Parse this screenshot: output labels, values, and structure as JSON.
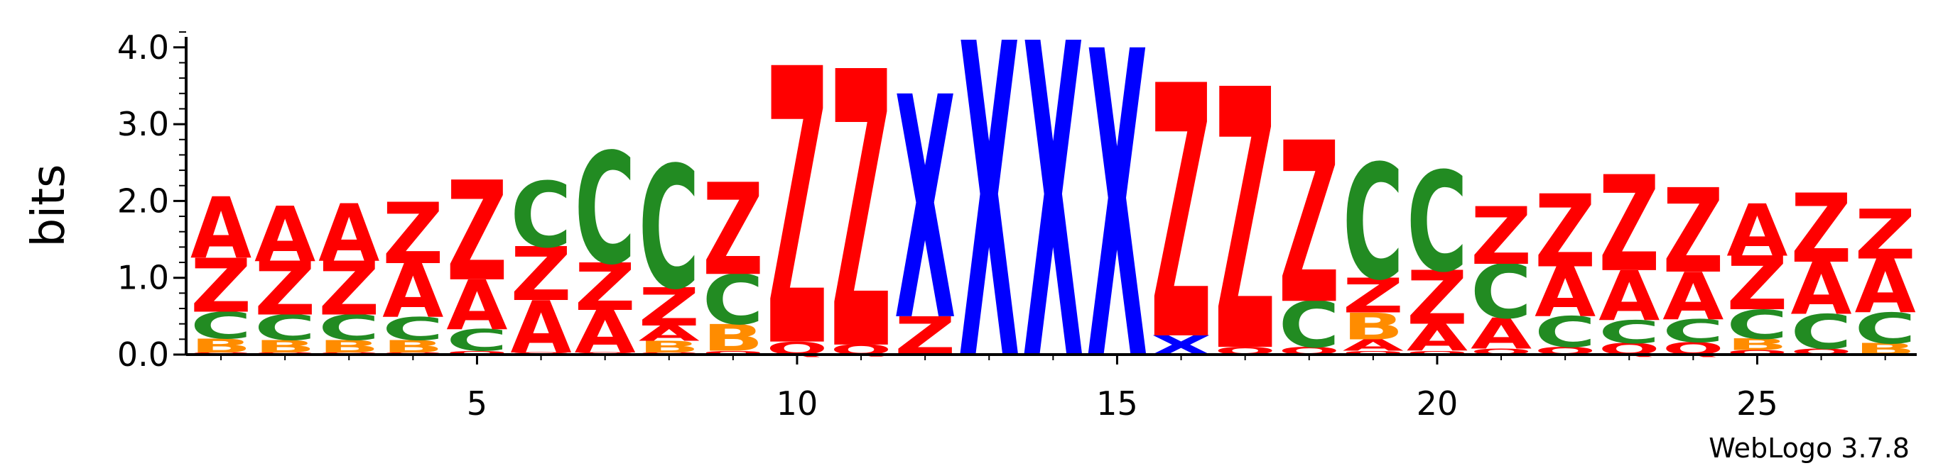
{
  "chart_data": {
    "type": "sequence-logo",
    "ylabel": "bits",
    "ylim": [
      0,
      4.2
    ],
    "yticks": [
      "0.0",
      "1.0",
      "2.0",
      "3.0",
      "4.0"
    ],
    "xticks": [
      5,
      10,
      15,
      20,
      25
    ],
    "positions": [
      1,
      27
    ],
    "colors": {
      "A": "#ff0000",
      "Z": "#ff0000",
      "C": "#228b22",
      "B": "#ff8c00",
      "X": "#0000ff",
      "Q": "#ff0000"
    },
    "columns": [
      [
        [
          "Q",
          0.03
        ],
        [
          "B",
          0.18
        ],
        [
          "C",
          0.35
        ],
        [
          "Z",
          0.7
        ],
        [
          "A",
          0.8
        ]
      ],
      [
        [
          "Q",
          0.03
        ],
        [
          "B",
          0.16
        ],
        [
          "C",
          0.33
        ],
        [
          "Z",
          0.7
        ],
        [
          "A",
          0.72
        ]
      ],
      [
        [
          "Q",
          0.03
        ],
        [
          "B",
          0.16
        ],
        [
          "C",
          0.33
        ],
        [
          "Z",
          0.7
        ],
        [
          "A",
          0.75
        ]
      ],
      [
        [
          "Q",
          0.03
        ],
        [
          "B",
          0.16
        ],
        [
          "C",
          0.3
        ],
        [
          "A",
          0.7
        ],
        [
          "Z",
          0.8
        ]
      ],
      [
        [
          "Q",
          0.05
        ],
        [
          "C",
          0.28
        ],
        [
          "A",
          0.65
        ],
        [
          "Z",
          1.3
        ]
      ],
      [
        [
          "Q",
          0.03
        ],
        [
          "A",
          0.68
        ],
        [
          "Z",
          0.7
        ],
        [
          "C",
          0.85
        ]
      ],
      [
        [
          "Q",
          0.03
        ],
        [
          "A",
          0.55
        ],
        [
          "Z",
          0.62
        ],
        [
          "C",
          1.45
        ]
      ],
      [
        [
          "Q",
          0.03
        ],
        [
          "B",
          0.15
        ],
        [
          "A",
          0.2
        ],
        [
          "Z",
          0.5
        ],
        [
          "C",
          1.6
        ]
      ],
      [
        [
          "Q",
          0.05
        ],
        [
          "B",
          0.35
        ],
        [
          "C",
          0.65
        ],
        [
          "Z",
          1.2
        ]
      ],
      [
        [
          "Q",
          0.17
        ],
        [
          "Z",
          3.6
        ]
      ],
      [
        [
          "Q",
          0.13
        ],
        [
          "Z",
          3.6
        ]
      ],
      [
        [
          "Z",
          0.5
        ],
        [
          "X",
          2.9
        ]
      ],
      [
        [
          "X",
          4.1
        ]
      ],
      [
        [
          "X",
          4.1
        ]
      ],
      [
        [
          "X",
          4.0
        ]
      ],
      [
        [
          "X",
          0.25
        ],
        [
          "Z",
          3.3
        ]
      ],
      [
        [
          "Q",
          0.1
        ],
        [
          "Z",
          3.4
        ]
      ],
      [
        [
          "Q",
          0.1
        ],
        [
          "C",
          0.6
        ],
        [
          "Z",
          2.1
        ]
      ],
      [
        [
          "Q",
          0.05
        ],
        [
          "A",
          0.15
        ],
        [
          "B",
          0.35
        ],
        [
          "Z",
          0.45
        ],
        [
          "C",
          1.5
        ]
      ],
      [
        [
          "Q",
          0.05
        ],
        [
          "A",
          0.35
        ],
        [
          "Z",
          0.7
        ],
        [
          "C",
          1.3
        ]
      ],
      [
        [
          "Q",
          0.08
        ],
        [
          "A",
          0.4
        ],
        [
          "C",
          0.7
        ],
        [
          "Z",
          0.75
        ]
      ],
      [
        [
          "Q",
          0.1
        ],
        [
          "C",
          0.4
        ],
        [
          "A",
          0.65
        ],
        [
          "Z",
          0.95
        ]
      ],
      [
        [
          "Q",
          0.15
        ],
        [
          "C",
          0.3
        ],
        [
          "A",
          0.65
        ],
        [
          "Z",
          1.25
        ]
      ],
      [
        [
          "Q",
          0.16
        ],
        [
          "C",
          0.3
        ],
        [
          "A",
          0.62
        ],
        [
          "Z",
          1.1
        ]
      ],
      [
        [
          "Q",
          0.06
        ],
        [
          "B",
          0.15
        ],
        [
          "C",
          0.38
        ],
        [
          "Z",
          0.7
        ],
        [
          "A",
          0.68
        ]
      ],
      [
        [
          "Q",
          0.08
        ],
        [
          "C",
          0.45
        ],
        [
          "A",
          0.68
        ],
        [
          "Z",
          0.9
        ]
      ],
      [
        [
          "B",
          0.15
        ],
        [
          "C",
          0.4
        ],
        [
          "A",
          0.7
        ],
        [
          "Z",
          0.65
        ]
      ]
    ]
  },
  "credit": "WebLogo 3.7.8"
}
